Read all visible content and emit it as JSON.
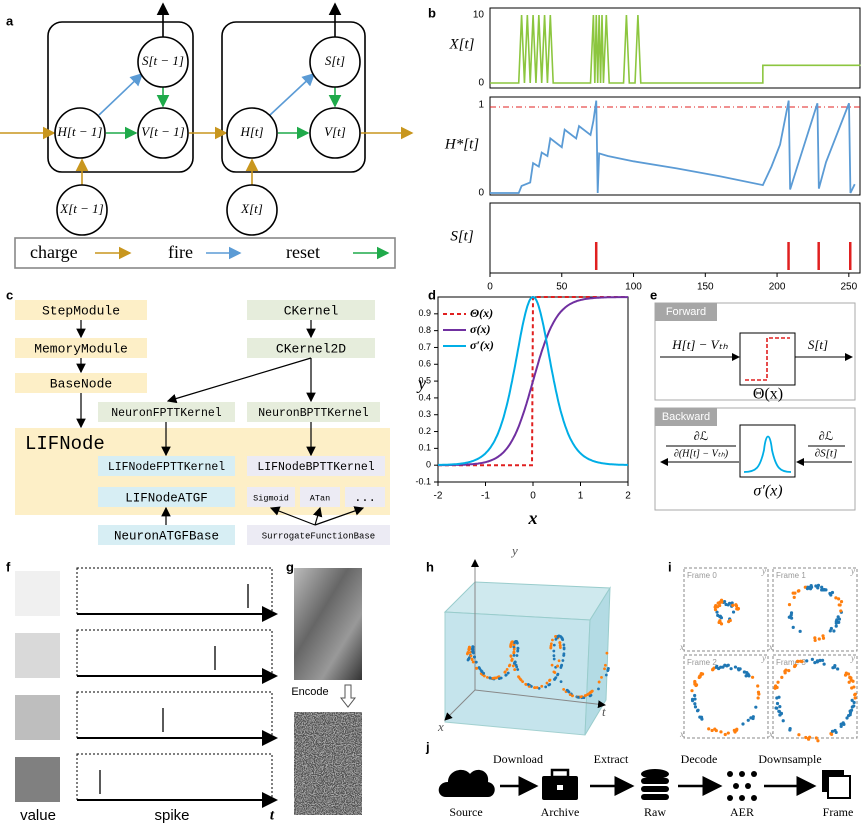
{
  "panel_labels": [
    "a",
    "b",
    "c",
    "d",
    "e",
    "f",
    "g",
    "h",
    "i",
    "j"
  ],
  "a": {
    "nodes": [
      "S[t − 1]",
      "H[t − 1]",
      "V[t − 1]",
      "X[t − 1]",
      "S[t]",
      "H[t]",
      "V[t]",
      "X[t]"
    ],
    "legend": [
      "charge",
      "fire",
      "reset"
    ]
  },
  "b": {
    "ylabels": [
      "X[t]",
      "H*[t]",
      "S[t]"
    ],
    "xlim": [
      0,
      255
    ],
    "xticks": [
      0,
      50,
      100,
      150,
      200,
      250
    ],
    "x_yticks": [
      10,
      0
    ],
    "h_yticks": [
      1,
      0
    ],
    "s_spikes": [
      74,
      208,
      229,
      251
    ]
  },
  "c": {
    "boxes": [
      "StepModule",
      "MemoryModule",
      "BaseNode",
      "CKernel",
      "CKernel2D",
      "NeuronFPTTKernel",
      "NeuronBPTTKernel",
      "LIFNode",
      "LIFNodeFPTTKernel",
      "LIFNodeBPTTKernel",
      "LIFNodeATGF",
      "Sigmoid",
      "ATan",
      "...",
      "NeuronATGFBase",
      "SurrogateFunctionBase"
    ]
  },
  "d": {
    "xlim": [
      -2,
      2
    ],
    "ylim": [
      -0.1,
      1
    ],
    "xticks": [
      -2,
      -1,
      0,
      1,
      2
    ],
    "yticks": [
      -0.1,
      0,
      0.1,
      0.2,
      0.3,
      0.4,
      0.5,
      0.6,
      0.7,
      0.8,
      0.9
    ],
    "xlabel": "x",
    "ylabel": "y",
    "legend": [
      "Θ(x)",
      "σ(x)",
      "σ′(x)"
    ]
  },
  "e": {
    "forward": "Forward",
    "backward": "Backward",
    "input": "H[t] − Vₜₕ",
    "output": "S[t]",
    "theta": "Θ(x)",
    "sigma_prime": "σ′(x)",
    "grad_left_num": "∂ℒ",
    "grad_left_den": "∂(H[t] − Vₜₕ)",
    "grad_right_num": "∂ℒ",
    "grad_right_den": "∂S[t]"
  },
  "f": {
    "labels": [
      "value",
      "spike",
      "t"
    ]
  },
  "g": {
    "encode": "Encode"
  },
  "h": {
    "axes": [
      "y",
      "x",
      "t"
    ]
  },
  "i": {
    "frames": [
      "Frame 0",
      "Frame 1",
      "Frame 2",
      "Frame 3"
    ],
    "axes": [
      "y",
      "x"
    ]
  },
  "j": {
    "steps": [
      "Source",
      "Archive",
      "Raw",
      "AER",
      "Frame"
    ],
    "actions": [
      "Download",
      "Extract",
      "Decode",
      "Downsample"
    ]
  }
}
